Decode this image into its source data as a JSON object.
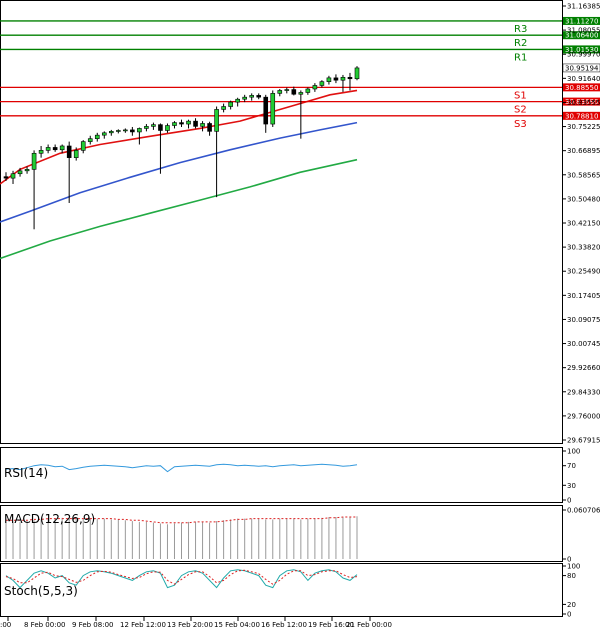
{
  "chart_data": {
    "type": "candlestick",
    "y_ticks": [
      "31.16385",
      "31.08055",
      "30.99970",
      "30.91640",
      "30.83555",
      "30.75225",
      "30.66895",
      "30.58565",
      "30.50480",
      "30.42150",
      "30.33820",
      "30.25490",
      "30.17405",
      "30.09075",
      "30.00745",
      "29.92660",
      "29.84330",
      "29.76000",
      "29.67915"
    ],
    "y_range": [
      29.67915,
      31.16385
    ],
    "x_ticks": [
      ":00",
      "8 Feb 00:00",
      "9 Feb 08:00",
      "12 Feb 12:00",
      "13 Feb 20:00",
      "15 Feb 04:00",
      "16 Feb 12:00",
      "19 Feb 16:00",
      "21 Feb 00:00"
    ],
    "current_price": {
      "label": "30.95194",
      "value": 30.95194
    },
    "levels": [
      {
        "name": "R3",
        "label": "31.11270",
        "value": 31.1127,
        "color": "#008000"
      },
      {
        "name": "R2",
        "label": "31.06400",
        "value": 31.064,
        "color": "#008000"
      },
      {
        "name": "R1",
        "label": "31.01530",
        "value": 31.0153,
        "color": "#008000"
      },
      {
        "name": "S1",
        "label": "30.88550",
        "value": 30.8855,
        "color": "#e00000"
      },
      {
        "name": "S2",
        "label": "30.83680",
        "value": 30.8368,
        "color": "#e00000"
      },
      {
        "name": "S3",
        "label": "30.78810",
        "value": 30.7881,
        "color": "#e00000"
      }
    ],
    "candles": [
      {
        "o": 30.58,
        "h": 30.595,
        "l": 30.565,
        "c": 30.575
      },
      {
        "o": 30.575,
        "h": 30.6,
        "l": 30.555,
        "c": 30.59
      },
      {
        "o": 30.59,
        "h": 30.61,
        "l": 30.58,
        "c": 30.6
      },
      {
        "o": 30.6,
        "h": 30.615,
        "l": 30.59,
        "c": 30.605
      },
      {
        "o": 30.605,
        "h": 30.67,
        "l": 30.4,
        "c": 30.66
      },
      {
        "o": 30.66,
        "h": 30.685,
        "l": 30.645,
        "c": 30.67
      },
      {
        "o": 30.67,
        "h": 30.69,
        "l": 30.66,
        "c": 30.68
      },
      {
        "o": 30.68,
        "h": 30.69,
        "l": 30.665,
        "c": 30.672
      },
      {
        "o": 30.672,
        "h": 30.69,
        "l": 30.66,
        "c": 30.685
      },
      {
        "o": 30.685,
        "h": 30.7,
        "l": 30.49,
        "c": 30.645
      },
      {
        "o": 30.645,
        "h": 30.68,
        "l": 30.635,
        "c": 30.67
      },
      {
        "o": 30.67,
        "h": 30.705,
        "l": 30.66,
        "c": 30.7
      },
      {
        "o": 30.7,
        "h": 30.72,
        "l": 30.69,
        "c": 30.71
      },
      {
        "o": 30.71,
        "h": 30.73,
        "l": 30.7,
        "c": 30.722
      },
      {
        "o": 30.722,
        "h": 30.735,
        "l": 30.71,
        "c": 30.73
      },
      {
        "o": 30.73,
        "h": 30.74,
        "l": 30.72,
        "c": 30.735
      },
      {
        "o": 30.735,
        "h": 30.742,
        "l": 30.728,
        "c": 30.738
      },
      {
        "o": 30.738,
        "h": 30.745,
        "l": 30.73,
        "c": 30.74
      },
      {
        "o": 30.74,
        "h": 30.75,
        "l": 30.72,
        "c": 30.733
      },
      {
        "o": 30.733,
        "h": 30.748,
        "l": 30.69,
        "c": 30.745
      },
      {
        "o": 30.745,
        "h": 30.76,
        "l": 30.735,
        "c": 30.752
      },
      {
        "o": 30.752,
        "h": 30.765,
        "l": 30.74,
        "c": 30.758
      },
      {
        "o": 30.758,
        "h": 30.762,
        "l": 30.59,
        "c": 30.738
      },
      {
        "o": 30.738,
        "h": 30.762,
        "l": 30.73,
        "c": 30.755
      },
      {
        "o": 30.755,
        "h": 30.77,
        "l": 30.745,
        "c": 30.765
      },
      {
        "o": 30.765,
        "h": 30.775,
        "l": 30.75,
        "c": 30.76
      },
      {
        "o": 30.76,
        "h": 30.775,
        "l": 30.745,
        "c": 30.77
      },
      {
        "o": 30.77,
        "h": 30.78,
        "l": 30.745,
        "c": 30.752
      },
      {
        "o": 30.752,
        "h": 30.77,
        "l": 30.735,
        "c": 30.762
      },
      {
        "o": 30.762,
        "h": 30.768,
        "l": 30.72,
        "c": 30.735
      },
      {
        "o": 30.735,
        "h": 30.82,
        "l": 30.51,
        "c": 30.81
      },
      {
        "o": 30.81,
        "h": 30.83,
        "l": 30.8,
        "c": 30.82
      },
      {
        "o": 30.82,
        "h": 30.84,
        "l": 30.81,
        "c": 30.835
      },
      {
        "o": 30.835,
        "h": 30.85,
        "l": 30.82,
        "c": 30.845
      },
      {
        "o": 30.845,
        "h": 30.86,
        "l": 30.835,
        "c": 30.852
      },
      {
        "o": 30.852,
        "h": 30.865,
        "l": 30.84,
        "c": 30.858
      },
      {
        "o": 30.858,
        "h": 30.865,
        "l": 30.845,
        "c": 30.852
      },
      {
        "o": 30.852,
        "h": 30.86,
        "l": 30.73,
        "c": 30.76
      },
      {
        "o": 30.76,
        "h": 30.875,
        "l": 30.75,
        "c": 30.865
      },
      {
        "o": 30.865,
        "h": 30.88,
        "l": 30.855,
        "c": 30.875
      },
      {
        "o": 30.875,
        "h": 30.885,
        "l": 30.865,
        "c": 30.878
      },
      {
        "o": 30.878,
        "h": 30.888,
        "l": 30.858,
        "c": 30.862
      },
      {
        "o": 30.862,
        "h": 30.875,
        "l": 30.71,
        "c": 30.868
      },
      {
        "o": 30.868,
        "h": 30.885,
        "l": 30.86,
        "c": 30.88
      },
      {
        "o": 30.88,
        "h": 30.9,
        "l": 30.87,
        "c": 30.892
      },
      {
        "o": 30.892,
        "h": 30.91,
        "l": 30.885,
        "c": 30.905
      },
      {
        "o": 30.905,
        "h": 30.925,
        "l": 30.895,
        "c": 30.918
      },
      {
        "o": 30.918,
        "h": 30.93,
        "l": 30.9,
        "c": 30.91
      },
      {
        "o": 30.91,
        "h": 30.928,
        "l": 30.87,
        "c": 30.92
      },
      {
        "o": 30.92,
        "h": 30.935,
        "l": 30.875,
        "c": 30.915
      },
      {
        "o": 30.915,
        "h": 30.958,
        "l": 30.91,
        "c": 30.952
      }
    ],
    "ma_red": [
      [
        0,
        30.555
      ],
      [
        20,
        30.605
      ],
      [
        60,
        30.66
      ],
      [
        100,
        30.69
      ],
      [
        150,
        30.718
      ],
      [
        200,
        30.745
      ],
      [
        240,
        30.77
      ],
      [
        270,
        30.8
      ],
      [
        300,
        30.83
      ],
      [
        330,
        30.86
      ],
      [
        357,
        30.875
      ]
    ],
    "ma_blue": [
      [
        0,
        30.425
      ],
      [
        30,
        30.462
      ],
      [
        80,
        30.525
      ],
      [
        130,
        30.578
      ],
      [
        180,
        30.628
      ],
      [
        230,
        30.672
      ],
      [
        280,
        30.712
      ],
      [
        320,
        30.74
      ],
      [
        357,
        30.765
      ]
    ],
    "ma_green": [
      [
        0,
        30.3
      ],
      [
        50,
        30.36
      ],
      [
        100,
        30.41
      ],
      [
        150,
        30.455
      ],
      [
        200,
        30.5
      ],
      [
        250,
        30.545
      ],
      [
        300,
        30.595
      ],
      [
        357,
        30.638
      ]
    ],
    "rsi": {
      "label": "RSI(14)",
      "ticks": [
        "100",
        "70",
        "30",
        "0"
      ],
      "values": [
        63,
        64,
        62,
        66,
        70,
        72,
        71,
        68,
        69,
        62,
        64,
        67,
        69,
        70,
        71,
        70,
        69,
        68,
        66,
        68,
        70,
        69,
        70,
        58,
        68,
        69,
        70,
        71,
        70,
        69,
        72,
        73,
        72,
        70,
        71,
        70,
        69,
        70,
        68,
        70,
        71,
        72,
        70,
        71,
        72,
        73,
        72,
        71,
        69,
        70,
        72
      ]
    },
    "macd": {
      "label": "MACD(12,26,9)",
      "ticks": [
        "0.060706",
        "0"
      ],
      "hist": [
        0.045,
        0.045,
        0.046,
        0.047,
        0.048,
        0.049,
        0.05,
        0.05,
        0.051,
        0.05,
        0.05,
        0.05,
        0.05,
        0.05,
        0.05,
        0.049,
        0.049,
        0.048,
        0.047,
        0.046,
        0.046,
        0.045,
        0.044,
        0.043,
        0.044,
        0.045,
        0.046,
        0.046,
        0.046,
        0.045,
        0.047,
        0.048,
        0.049,
        0.05,
        0.05,
        0.05,
        0.05,
        0.049,
        0.049,
        0.05,
        0.05,
        0.05,
        0.049,
        0.05,
        0.05,
        0.051,
        0.052,
        0.052,
        0.052,
        0.052,
        0.053
      ],
      "signal": [
        0.048,
        0.048,
        0.048,
        0.048,
        0.049,
        0.049,
        0.05,
        0.05,
        0.05,
        0.05,
        0.05,
        0.05,
        0.05,
        0.05,
        0.05,
        0.05,
        0.049,
        0.049,
        0.048,
        0.048,
        0.047,
        0.046,
        0.045,
        0.045,
        0.045,
        0.045,
        0.045,
        0.046,
        0.046,
        0.046,
        0.046,
        0.047,
        0.048,
        0.049,
        0.049,
        0.05,
        0.05,
        0.05,
        0.05,
        0.05,
        0.05,
        0.05,
        0.05,
        0.05,
        0.05,
        0.05,
        0.051,
        0.051,
        0.052,
        0.052,
        0.052
      ]
    },
    "stoch": {
      "label": "Stoch(5,5,3)",
      "ticks": [
        "100",
        "80",
        "20",
        "0"
      ],
      "k": [
        80,
        70,
        55,
        70,
        85,
        90,
        85,
        75,
        80,
        65,
        60,
        80,
        88,
        90,
        88,
        85,
        80,
        75,
        70,
        80,
        88,
        90,
        85,
        55,
        60,
        80,
        88,
        90,
        85,
        70,
        55,
        75,
        90,
        92,
        90,
        85,
        80,
        60,
        55,
        80,
        90,
        92,
        88,
        70,
        85,
        90,
        92,
        88,
        75,
        70,
        82
      ],
      "d": [
        78,
        74,
        65,
        65,
        75,
        85,
        87,
        80,
        78,
        72,
        66,
        70,
        80,
        88,
        89,
        87,
        82,
        78,
        74,
        76,
        84,
        88,
        87,
        70,
        62,
        72,
        82,
        88,
        88,
        78,
        65,
        70,
        82,
        90,
        91,
        88,
        84,
        72,
        62,
        70,
        83,
        90,
        90,
        80,
        82,
        88,
        90,
        90,
        82,
        76,
        78
      ]
    }
  }
}
